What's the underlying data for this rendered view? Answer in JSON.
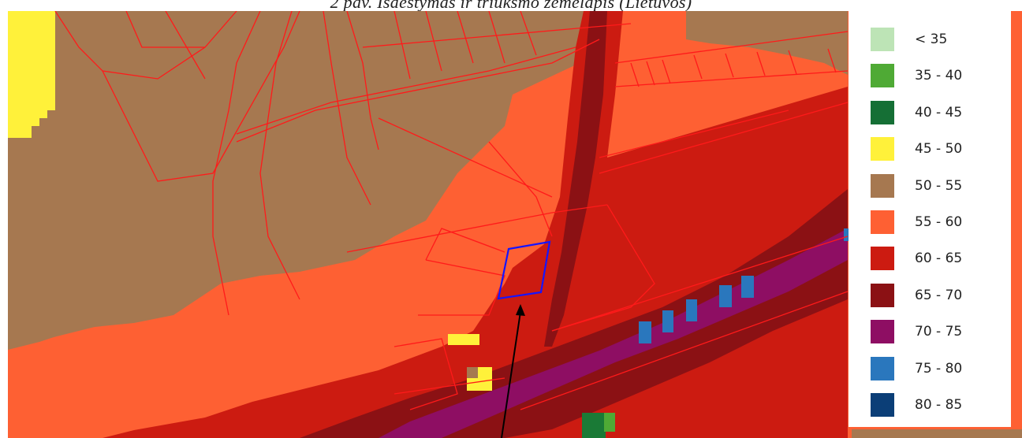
{
  "caption": "2 pav. Išdėstymas ir triukšmo žemėlapis (Lietuvos)",
  "colors": {
    "brown": "#a67850",
    "orange": "#fe6033",
    "red": "#cc1b11",
    "darkred": "#8b1114",
    "purple": "#8e0e63",
    "blue": "#2a77bd",
    "yellow": "#fff13a",
    "green": "#1a7a36",
    "parcel_line": "#ff1a1a",
    "site_outline": "#1515ff",
    "arrow": "#000000"
  },
  "legend": {
    "items": [
      {
        "label": "< 35",
        "color": "#bde4b6"
      },
      {
        "label": "35 - 40",
        "color": "#4faa35"
      },
      {
        "label": "40 - 45",
        "color": "#156f35"
      },
      {
        "label": "45 - 50",
        "color": "#fff13a"
      },
      {
        "label": "50 - 55",
        "color": "#a67850"
      },
      {
        "label": "55 - 60",
        "color": "#fe6033"
      },
      {
        "label": "60 - 65",
        "color": "#cc1b11"
      },
      {
        "label": "65 - 70",
        "color": "#8b1114"
      },
      {
        "label": "70 - 75",
        "color": "#8e0e63"
      },
      {
        "label": "75 - 80",
        "color": "#2a77bd"
      },
      {
        "label": "80 - 85",
        "color": "#0b3e77"
      }
    ]
  }
}
